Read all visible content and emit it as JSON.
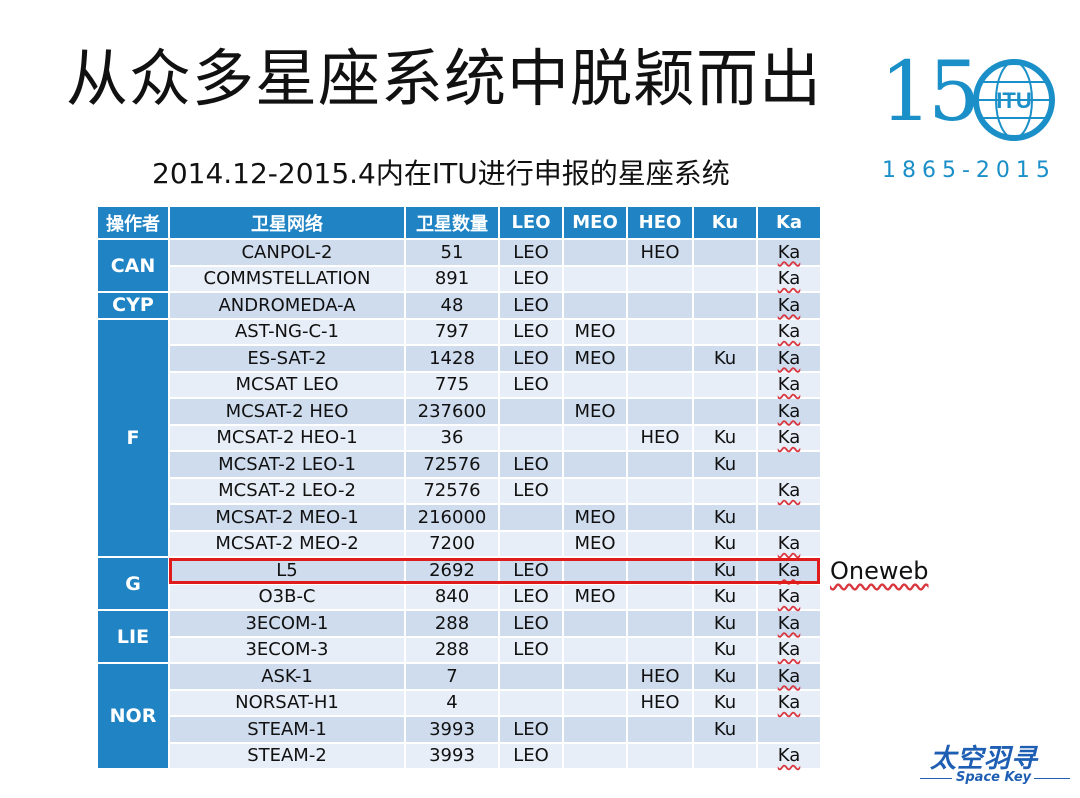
{
  "title": "从众多星座系统中脱颖而出",
  "subtitle": "2014.12-2015.4内在ITU进行申报的星座系统",
  "logo": {
    "number": "15",
    "globe_text": "ITU",
    "years": "1865-2015"
  },
  "table": {
    "headers": [
      "操作者",
      "卫星网络",
      "卫星数量",
      "LEO",
      "MEO",
      "HEO",
      "Ku",
      "Ka"
    ],
    "groups": [
      {
        "operator": "CAN",
        "rows": [
          {
            "name": "CANPOL-2",
            "count": "51",
            "leo": "LEO",
            "meo": "",
            "heo": "HEO",
            "ku": "",
            "ka": "Ka"
          },
          {
            "name": "COMMSTELLATION",
            "count": "891",
            "leo": "LEO",
            "meo": "",
            "heo": "",
            "ku": "",
            "ka": "Ka"
          }
        ]
      },
      {
        "operator": "CYP",
        "rows": [
          {
            "name": "ANDROMEDA-A",
            "count": "48",
            "leo": "LEO",
            "meo": "",
            "heo": "",
            "ku": "",
            "ka": "Ka"
          }
        ]
      },
      {
        "operator": "F",
        "rows": [
          {
            "name": "AST-NG-C-1",
            "count": "797",
            "leo": "LEO",
            "meo": "MEO",
            "heo": "",
            "ku": "",
            "ka": "Ka"
          },
          {
            "name": "ES-SAT-2",
            "count": "1428",
            "leo": "LEO",
            "meo": "MEO",
            "heo": "",
            "ku": "Ku",
            "ka": "Ka"
          },
          {
            "name": "MCSAT LEO",
            "count": "775",
            "leo": "LEO",
            "meo": "",
            "heo": "",
            "ku": "",
            "ka": "Ka"
          },
          {
            "name": "MCSAT-2 HEO",
            "count": "237600",
            "leo": "",
            "meo": "MEO",
            "heo": "",
            "ku": "",
            "ka": "Ka"
          },
          {
            "name": "MCSAT-2 HEO-1",
            "count": "36",
            "leo": "",
            "meo": "",
            "heo": "HEO",
            "ku": "Ku",
            "ka": "Ka"
          },
          {
            "name": "MCSAT-2 LEO-1",
            "count": "72576",
            "leo": "LEO",
            "meo": "",
            "heo": "",
            "ku": "Ku",
            "ka": ""
          },
          {
            "name": "MCSAT-2 LEO-2",
            "count": "72576",
            "leo": "LEO",
            "meo": "",
            "heo": "",
            "ku": "",
            "ka": "Ka"
          },
          {
            "name": "MCSAT-2 MEO-1",
            "count": "216000",
            "leo": "",
            "meo": "MEO",
            "heo": "",
            "ku": "Ku",
            "ka": ""
          },
          {
            "name": "MCSAT-2 MEO-2",
            "count": "7200",
            "leo": "",
            "meo": "MEO",
            "heo": "",
            "ku": "Ku",
            "ka": "Ka"
          }
        ]
      },
      {
        "operator": "G",
        "rows": [
          {
            "name": "L5",
            "count": "2692",
            "leo": "LEO",
            "meo": "",
            "heo": "",
            "ku": "Ku",
            "ka": "Ka"
          },
          {
            "name": "O3B-C",
            "count": "840",
            "leo": "LEO",
            "meo": "MEO",
            "heo": "",
            "ku": "Ku",
            "ka": "Ka"
          }
        ]
      },
      {
        "operator": "LIE",
        "rows": [
          {
            "name": "3ECOM-1",
            "count": "288",
            "leo": "LEO",
            "meo": "",
            "heo": "",
            "ku": "Ku",
            "ka": "Ka"
          },
          {
            "name": "3ECOM-3",
            "count": "288",
            "leo": "LEO",
            "meo": "",
            "heo": "",
            "ku": "Ku",
            "ka": "Ka"
          }
        ]
      },
      {
        "operator": "NOR",
        "rows": [
          {
            "name": "ASK-1",
            "count": "7",
            "leo": "",
            "meo": "",
            "heo": "HEO",
            "ku": "Ku",
            "ka": "Ka"
          },
          {
            "name": "NORSAT-H1",
            "count": "4",
            "leo": "",
            "meo": "",
            "heo": "HEO",
            "ku": "Ku",
            "ka": "Ka"
          },
          {
            "name": "STEAM-1",
            "count": "3993",
            "leo": "LEO",
            "meo": "",
            "heo": "",
            "ku": "Ku",
            "ka": ""
          },
          {
            "name": "STEAM-2",
            "count": "3993",
            "leo": "LEO",
            "meo": "",
            "heo": "",
            "ku": "",
            "ka": "Ka"
          }
        ]
      }
    ]
  },
  "annotation": {
    "label": "Oneweb",
    "highlight_color": "#e01b1b"
  },
  "brand": {
    "cn": "太空羽寻",
    "en": "Space Key"
  },
  "colors": {
    "header_blue": "#1f83c4",
    "row_dark": "#cfdcee",
    "row_light": "#e8eef7",
    "logo_blue": "#1b8fc8"
  }
}
